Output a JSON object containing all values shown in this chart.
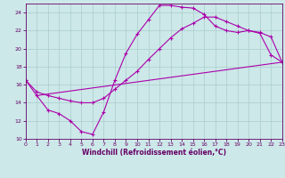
{
  "xlabel": "Windchill (Refroidissement éolien,°C)",
  "xlim": [
    0,
    23
  ],
  "ylim": [
    10,
    25
  ],
  "xticks": [
    0,
    1,
    2,
    3,
    4,
    5,
    6,
    7,
    8,
    9,
    10,
    11,
    12,
    13,
    14,
    15,
    16,
    17,
    18,
    19,
    20,
    21,
    22,
    23
  ],
  "yticks": [
    10,
    12,
    14,
    16,
    18,
    20,
    22,
    24
  ],
  "background_color": "#cce8e8",
  "grid_color": "#aacccc",
  "line_color": "#aa00aa",
  "line1_x": [
    0,
    1,
    2,
    3,
    4,
    5,
    6,
    7,
    8,
    9,
    10,
    11,
    12,
    13,
    14,
    15,
    16,
    17,
    18,
    19,
    20,
    21,
    22,
    23
  ],
  "line1_y": [
    16.5,
    14.8,
    13.2,
    12.8,
    12.0,
    10.8,
    10.5,
    13.0,
    16.5,
    19.5,
    21.6,
    23.2,
    24.8,
    24.8,
    24.6,
    24.5,
    23.8,
    22.5,
    22.0,
    21.8,
    22.0,
    21.7,
    19.3,
    18.5
  ],
  "line2_x": [
    0,
    1,
    2,
    3,
    4,
    5,
    6,
    7,
    8,
    9,
    10,
    11,
    12,
    13,
    14,
    15,
    16,
    17,
    18,
    19,
    20,
    21,
    22,
    23
  ],
  "line2_y": [
    16.5,
    15.2,
    14.8,
    14.5,
    14.2,
    14.0,
    14.0,
    14.5,
    15.5,
    16.5,
    17.5,
    18.8,
    20.0,
    21.2,
    22.2,
    22.8,
    23.5,
    23.5,
    23.0,
    22.5,
    22.0,
    21.8,
    21.3,
    18.5
  ],
  "line3_x": [
    1,
    23
  ],
  "line3_y": [
    14.8,
    18.5
  ]
}
